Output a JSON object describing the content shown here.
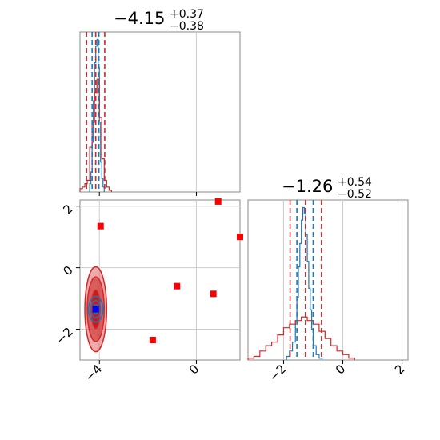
{
  "chart_data": {
    "type": "corner",
    "panels": [
      {
        "id": "hist_param1",
        "kind": "histogram",
        "title": {
          "value": "−4.15",
          "plus": "+0.37",
          "minus": "−0.38"
        },
        "xlim": [
          -4.8,
          1.8
        ],
        "grid": true,
        "series": [
          {
            "name": "",
            "color": "#1f77b4",
            "bins": [
              -4.4,
              -4.35,
              -4.3,
              -4.25,
              -4.2,
              -4.15,
              -4.1,
              -4.05,
              -4.0,
              -3.95,
              -3.9,
              -3.85,
              -3.8
            ],
            "counts": [
              0.05,
              0.12,
              0.3,
              0.55,
              0.78,
              0.88,
              0.92,
              0.75,
              0.42,
              0.18,
              0.08,
              0.03
            ]
          },
          {
            "name": "",
            "color": "#d62728",
            "bins": [
              -4.8,
              -4.7,
              -4.6,
              -4.5,
              -4.4,
              -4.3,
              -4.2,
              -4.1,
              -4.0,
              -3.9,
              -3.8,
              -3.7,
              -3.6,
              -3.5
            ],
            "counts": [
              0.02,
              0.03,
              0.05,
              0.07,
              0.27,
              0.42,
              0.6,
              0.68,
              0.45,
              0.2,
              0.07,
              0.03,
              0.01
            ]
          }
        ],
        "quantile_lines": {
          "color": "#d62728",
          "values": [
            -4.53,
            -4.15,
            -3.78
          ]
        },
        "blue_quantile_lines": {
          "color": "#1f77b4",
          "values": [
            -4.3,
            -4.15,
            -4.02
          ]
        }
      },
      {
        "id": "hist_param2",
        "kind": "histogram",
        "title": {
          "value": "−1.26",
          "plus": "+0.54",
          "minus": "−0.52"
        },
        "xlim": [
          -3.2,
          2.2
        ],
        "xticks": [
          -2,
          0,
          2
        ],
        "xtick_labels": [
          "−2",
          "0",
          "2"
        ],
        "grid": true,
        "series": [
          {
            "name": "",
            "color": "#1f77b4",
            "bins": [
              -1.9,
              -1.8,
              -1.7,
              -1.6,
              -1.55,
              -1.5,
              -1.45,
              -1.4,
              -1.35,
              -1.3,
              -1.25,
              -1.2,
              -1.15,
              -1.1,
              -1.05,
              -1.0,
              -0.9,
              -0.8,
              -0.7
            ],
            "counts": [
              0.02,
              0.05,
              0.1,
              0.22,
              0.35,
              0.52,
              0.65,
              0.78,
              0.85,
              0.82,
              0.7,
              0.55,
              0.4,
              0.28,
              0.17,
              0.08,
              0.03,
              0.01
            ]
          },
          {
            "name": "",
            "color": "#d62728",
            "bins": [
              -3.2,
              -3.0,
              -2.8,
              -2.6,
              -2.4,
              -2.2,
              -2.0,
              -1.8,
              -1.6,
              -1.4,
              -1.2,
              -1.0,
              -0.8,
              -0.6,
              -0.4,
              -0.2,
              0.0,
              0.2,
              0.4
            ],
            "counts": [
              0.01,
              0.02,
              0.05,
              0.08,
              0.1,
              0.14,
              0.18,
              0.2,
              0.22,
              0.24,
              0.22,
              0.2,
              0.16,
              0.12,
              0.08,
              0.05,
              0.03,
              0.01
            ]
          }
        ],
        "quantile_lines": {
          "color": "#d62728",
          "values": [
            -1.78,
            -1.26,
            -0.72
          ]
        },
        "blue_quantile_lines": {
          "color": "#1f77b4",
          "values": [
            -1.55,
            -1.26,
            -1.0
          ]
        }
      },
      {
        "id": "scatter_param1_param2",
        "kind": "2d-contour",
        "xlim": [
          -4.8,
          1.8
        ],
        "ylim": [
          -3.0,
          2.2
        ],
        "xticks": [
          -4,
          0
        ],
        "xtick_labels": [
          "−4",
          "0"
        ],
        "yticks": [
          -2,
          0,
          2
        ],
        "ytick_labels": [
          "−2",
          "0",
          "2"
        ],
        "grid": true,
        "red_contours": {
          "center": [
            -4.15,
            -1.35
          ],
          "levels": [
            {
              "rx": 0.45,
              "ry": 1.38,
              "fill": "#e06666",
              "opacity": 0.55
            },
            {
              "rx": 0.35,
              "ry": 1.05,
              "fill": "#cc2a2a",
              "opacity": 0.6
            },
            {
              "rx": 0.18,
              "ry": 0.62,
              "fill": "#c00000",
              "opacity": 0.7
            }
          ]
        },
        "blue_contours": {
          "center": [
            -4.15,
            -1.35
          ],
          "levels": [
            {
              "rx": 0.3,
              "ry": 0.42
            },
            {
              "rx": 0.2,
              "ry": 0.28
            },
            {
              "rx": 0.1,
              "ry": 0.15
            }
          ]
        },
        "red_markers": [
          {
            "x": -3.95,
            "y": 1.35
          },
          {
            "x": 0.9,
            "y": 2.15
          },
          {
            "x": 1.8,
            "y": 1.0
          },
          {
            "x": -0.8,
            "y": -0.6
          },
          {
            "x": 0.7,
            "y": -0.85
          },
          {
            "x": -1.8,
            "y": -2.35
          }
        ],
        "blue_marker": {
          "x": -4.15,
          "y": -1.35
        }
      }
    ]
  }
}
